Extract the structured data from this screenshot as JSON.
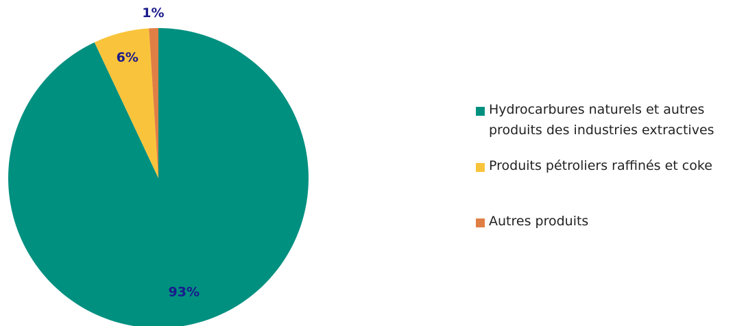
{
  "chart_data": {
    "type": "pie",
    "title": "",
    "categories": [
      "Hydrocarbures naturels et autres\nproduits des industries extractives",
      "Produits pétroliers raffinés et coke",
      "Autres produits"
    ],
    "values": [
      93,
      6,
      1
    ],
    "data_labels": [
      "93%",
      "6%",
      "1%"
    ],
    "colors": [
      "#009080",
      "#F9C43B",
      "#E07F45"
    ],
    "label_color": "#1A1A8C",
    "start_angle_deg": 0,
    "direction": "clockwise",
    "legend_position": "right"
  },
  "legend": {
    "items": [
      {
        "label": "Hydrocarbures naturels et autres\nproduits des industries extractives",
        "color": "#009080"
      },
      {
        "label": "Produits pétroliers raffinés et coke",
        "color": "#F9C43B"
      },
      {
        "label": "Autres produits",
        "color": "#E07F45"
      }
    ]
  }
}
